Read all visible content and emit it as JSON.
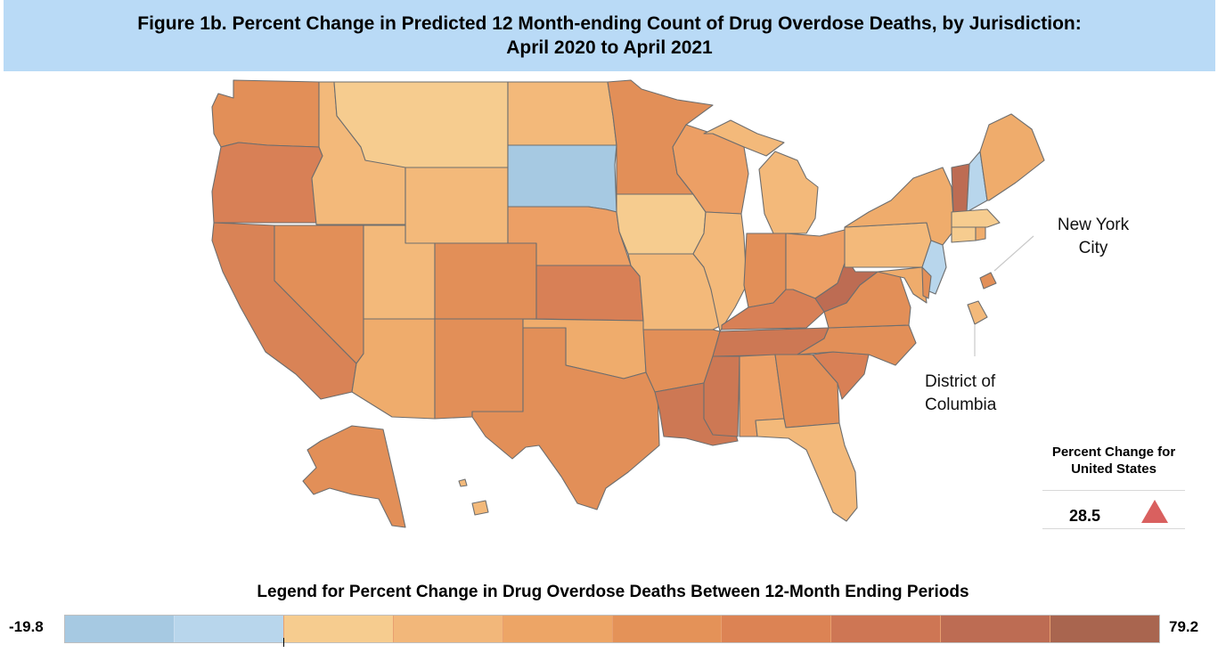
{
  "title": {
    "line1": "Figure 1b. Percent Change in Predicted 12 Month-ending Count of Drug Overdose Deaths, by Jurisdiction:",
    "line2": "April 2020 to April 2021"
  },
  "callouts": {
    "nyc_line1": "New York",
    "nyc_line2": "City",
    "dc_line1": "District of",
    "dc_line2": "Columbia"
  },
  "us_summary": {
    "title_line1": "Percent Change for",
    "title_line2": "United States",
    "value": "28.5",
    "direction_icon": "up-triangle-icon",
    "direction_color": "#d9605f"
  },
  "legend": {
    "title": "Legend for Percent Change in Drug Overdose Deaths Between 12-Month Ending Periods",
    "min": "-19.8",
    "max": "79.2",
    "colors": [
      "#a6c9e2",
      "#b8d6ec",
      "#f6cc8f",
      "#f2b77a",
      "#eda566",
      "#e49258",
      "#dc8354",
      "#ce7654",
      "#bd6c53",
      "#a9654f"
    ]
  },
  "state_colors": {
    "WA": "#e28f58",
    "OR": "#d88056",
    "CA": "#d98356",
    "NV": "#e28f58",
    "ID": "#f3b97a",
    "MT": "#f6cc8f",
    "WY": "#f3b97a",
    "UT": "#f3b97a",
    "AZ": "#efac6c",
    "CO": "#e28f58",
    "NM": "#e28f58",
    "ND": "#f3b97a",
    "SD": "#a6c9e2",
    "NE": "#ec9f65",
    "KS": "#d88056",
    "OK": "#efac6c",
    "TX": "#e28f58",
    "MN": "#e28f58",
    "IA": "#f6cc8f",
    "MO": "#f3b97a",
    "AR": "#e28f58",
    "LA": "#cd7854",
    "WI": "#ec9f65",
    "IL": "#f3b97a",
    "MI": "#f3b97a",
    "IN": "#e28f58",
    "OH": "#ec9f65",
    "KY": "#d88056",
    "TN": "#cd7854",
    "MS": "#cd7854",
    "AL": "#ec9f65",
    "GA": "#e28f58",
    "FL": "#f3b97a",
    "SC": "#d88056",
    "NC": "#e28f58",
    "VA": "#e28f58",
    "WV": "#bd6c53",
    "PA": "#f3b97a",
    "NY": "#efac6c",
    "VT": "#bd6c53",
    "NH": "#b8d6ec",
    "ME": "#efac6c",
    "MA": "#f6cc8f",
    "CT": "#f6cc8f",
    "RI": "#efac6c",
    "NJ": "#b8d6ec",
    "DE": "#e28f58",
    "MD": "#efac6c",
    "AK": "#e28f58",
    "HI": "#f3b97a",
    "NYC": "#e28f58",
    "DC": "#f3b97a"
  }
}
